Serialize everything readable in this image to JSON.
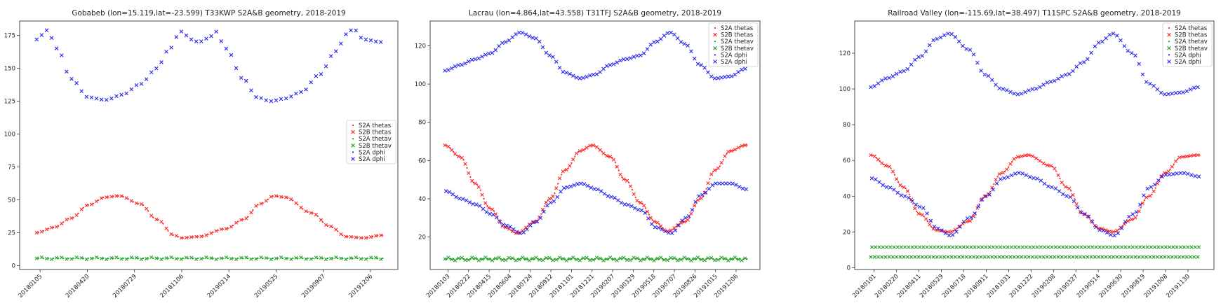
{
  "colors": {
    "red": "#ff2020",
    "green": "#1a9e1a",
    "blue": "#2222ee"
  },
  "chart_data": [
    {
      "type": "scatter",
      "title": "Gobabeb (lon=15.119,lat=-23.599) T33KWP S2A&B geometry, 2018-2019",
      "ylim": [
        -3,
        186
      ],
      "yticks": [
        0,
        25,
        50,
        75,
        100,
        125,
        150,
        175
      ],
      "xticklabels": [
        "20180105",
        "20180420",
        "20180729",
        "20181106",
        "20190214",
        "20190525",
        "20190907",
        "20191206"
      ],
      "legend": [
        "S2A thetas",
        "S2B thetas",
        "S2A thetav",
        "S2B thetav",
        "S2A dphi",
        "S2A dphi"
      ],
      "legend_loc": "center-right",
      "series_shapes": {
        "thetas": [
          [
            0,
            25
          ],
          [
            0.05,
            29
          ],
          [
            0.1,
            36
          ],
          [
            0.15,
            46
          ],
          [
            0.2,
            52
          ],
          [
            0.24,
            53
          ],
          [
            0.3,
            47
          ],
          [
            0.35,
            35
          ],
          [
            0.4,
            23
          ],
          [
            0.42,
            21
          ],
          [
            0.47,
            22
          ],
          [
            0.55,
            28
          ],
          [
            0.6,
            35
          ],
          [
            0.65,
            47
          ],
          [
            0.69,
            53
          ],
          [
            0.72,
            52
          ],
          [
            0.8,
            40
          ],
          [
            0.85,
            30
          ],
          [
            0.9,
            22
          ],
          [
            0.95,
            21
          ],
          [
            1.0,
            23
          ]
        ],
        "thetav": [
          [
            0,
            5.5
          ],
          [
            1,
            5.5
          ]
        ],
        "dphi": [
          [
            0,
            172
          ],
          [
            0.03,
            179
          ],
          [
            0.06,
            165
          ],
          [
            0.1,
            142
          ],
          [
            0.15,
            128
          ],
          [
            0.2,
            126
          ],
          [
            0.25,
            130
          ],
          [
            0.3,
            138
          ],
          [
            0.35,
            150
          ],
          [
            0.38,
            163
          ],
          [
            0.42,
            178
          ],
          [
            0.45,
            172
          ],
          [
            0.47,
            170
          ],
          [
            0.5,
            173
          ],
          [
            0.52,
            178
          ],
          [
            0.55,
            165
          ],
          [
            0.6,
            142
          ],
          [
            0.64,
            128
          ],
          [
            0.68,
            125
          ],
          [
            0.72,
            127
          ],
          [
            0.77,
            132
          ],
          [
            0.82,
            145
          ],
          [
            0.87,
            163
          ],
          [
            0.9,
            176
          ],
          [
            0.92,
            180
          ],
          [
            0.95,
            172
          ],
          [
            1.0,
            170
          ]
        ]
      },
      "points_per_series": 70
    },
    {
      "type": "scatter",
      "title": "Lacrau (lon=4.864,lat=43.558) T31TFJ S2A&B geometry, 2018-2019",
      "ylim": [
        3,
        133
      ],
      "yticks": [
        20,
        40,
        60,
        80,
        100,
        120
      ],
      "xticklabels": [
        "20180103",
        "20180222",
        "20180415",
        "20180604",
        "20180724",
        "20180912",
        "20181101",
        "20181221",
        "20190207",
        "20190329",
        "20190518",
        "20190707",
        "20190826",
        "20191015",
        "20191206"
      ],
      "legend": [
        "S2A thetas",
        "S2B thetas",
        "S2A thetav",
        "S2B thetav",
        "S2A dphi",
        "S2A dphi"
      ],
      "legend_loc": "top-right",
      "series_shapes": {
        "thetas": [
          [
            0,
            68
          ],
          [
            0.05,
            62
          ],
          [
            0.1,
            48
          ],
          [
            0.15,
            35
          ],
          [
            0.2,
            25
          ],
          [
            0.24,
            22
          ],
          [
            0.3,
            28
          ],
          [
            0.35,
            40
          ],
          [
            0.4,
            55
          ],
          [
            0.45,
            65
          ],
          [
            0.49,
            68
          ],
          [
            0.55,
            62
          ],
          [
            0.6,
            50
          ],
          [
            0.65,
            38
          ],
          [
            0.7,
            28
          ],
          [
            0.74,
            23
          ],
          [
            0.8,
            28
          ],
          [
            0.85,
            40
          ],
          [
            0.9,
            55
          ],
          [
            0.95,
            65
          ],
          [
            1.0,
            68
          ]
        ],
        "thetav": [
          [
            0,
            8.5
          ],
          [
            1,
            8.5
          ]
        ],
        "dphi_upper": [
          [
            0,
            107
          ],
          [
            0.05,
            110
          ],
          [
            0.1,
            113
          ],
          [
            0.15,
            116
          ],
          [
            0.2,
            122
          ],
          [
            0.25,
            127
          ],
          [
            0.3,
            124
          ],
          [
            0.35,
            115
          ],
          [
            0.4,
            106
          ],
          [
            0.45,
            103
          ],
          [
            0.5,
            105
          ],
          [
            0.55,
            110
          ],
          [
            0.6,
            113
          ],
          [
            0.65,
            115
          ],
          [
            0.7,
            122
          ],
          [
            0.75,
            127
          ],
          [
            0.8,
            121
          ],
          [
            0.85,
            110
          ],
          [
            0.9,
            103
          ],
          [
            0.95,
            104
          ],
          [
            1.0,
            108
          ]
        ],
        "dphi_lower": [
          [
            0,
            44
          ],
          [
            0.05,
            40
          ],
          [
            0.1,
            37
          ],
          [
            0.15,
            32
          ],
          [
            0.2,
            26
          ],
          [
            0.25,
            22
          ],
          [
            0.3,
            28
          ],
          [
            0.35,
            38
          ],
          [
            0.4,
            46
          ],
          [
            0.45,
            48
          ],
          [
            0.5,
            45
          ],
          [
            0.55,
            41
          ],
          [
            0.6,
            37
          ],
          [
            0.65,
            34
          ],
          [
            0.7,
            25
          ],
          [
            0.75,
            22
          ],
          [
            0.8,
            30
          ],
          [
            0.85,
            42
          ],
          [
            0.9,
            48
          ],
          [
            0.95,
            48
          ],
          [
            1.0,
            45
          ]
        ]
      },
      "points_per_series": 90
    },
    {
      "type": "scatter",
      "title": "Railroad Valley (lon=-115.69,lat=38.497) T11SPC S2A&B geometry, 2018-2019",
      "ylim": [
        -1,
        138
      ],
      "yticks": [
        0,
        20,
        40,
        60,
        80,
        100,
        120
      ],
      "xticklabels": [
        "20180101",
        "20180220",
        "20180411",
        "20180529",
        "20180718",
        "20180911",
        "20181031",
        "20181222",
        "20190208",
        "20190327",
        "20190514",
        "20190630",
        "20190819",
        "20191008",
        "20191130"
      ],
      "legend": [
        "S2A thetas",
        "S2B thetas",
        "S2A thetav",
        "S2B thetav",
        "S2A dphi",
        "S2A dphi"
      ],
      "legend_loc": "top-right",
      "series_shapes": {
        "thetas": [
          [
            0,
            63
          ],
          [
            0.05,
            57
          ],
          [
            0.1,
            45
          ],
          [
            0.15,
            30
          ],
          [
            0.2,
            21
          ],
          [
            0.24,
            20
          ],
          [
            0.3,
            26
          ],
          [
            0.35,
            40
          ],
          [
            0.4,
            53
          ],
          [
            0.45,
            62
          ],
          [
            0.48,
            63
          ],
          [
            0.55,
            57
          ],
          [
            0.6,
            45
          ],
          [
            0.65,
            30
          ],
          [
            0.7,
            22
          ],
          [
            0.74,
            20
          ],
          [
            0.8,
            27
          ],
          [
            0.85,
            40
          ],
          [
            0.9,
            53
          ],
          [
            0.95,
            62
          ],
          [
            1.0,
            63
          ]
        ],
        "thetav_a": [
          [
            0,
            6
          ],
          [
            1,
            6
          ]
        ],
        "thetav_b": [
          [
            0,
            11.5
          ],
          [
            1,
            11.5
          ]
        ],
        "dphi_upper": [
          [
            0,
            101
          ],
          [
            0.05,
            106
          ],
          [
            0.1,
            110
          ],
          [
            0.15,
            118
          ],
          [
            0.2,
            128
          ],
          [
            0.24,
            131
          ],
          [
            0.3,
            122
          ],
          [
            0.35,
            108
          ],
          [
            0.4,
            100
          ],
          [
            0.45,
            97
          ],
          [
            0.5,
            100
          ],
          [
            0.55,
            104
          ],
          [
            0.6,
            108
          ],
          [
            0.65,
            115
          ],
          [
            0.7,
            126
          ],
          [
            0.74,
            131
          ],
          [
            0.8,
            120
          ],
          [
            0.85,
            103
          ],
          [
            0.9,
            97
          ],
          [
            0.95,
            98
          ],
          [
            1.0,
            101
          ]
        ],
        "dphi_lower": [
          [
            0,
            50
          ],
          [
            0.05,
            45
          ],
          [
            0.1,
            40
          ],
          [
            0.15,
            34
          ],
          [
            0.2,
            22
          ],
          [
            0.24,
            18
          ],
          [
            0.3,
            28
          ],
          [
            0.35,
            40
          ],
          [
            0.4,
            50
          ],
          [
            0.45,
            53
          ],
          [
            0.5,
            50
          ],
          [
            0.55,
            45
          ],
          [
            0.6,
            40
          ],
          [
            0.65,
            30
          ],
          [
            0.7,
            21
          ],
          [
            0.74,
            18
          ],
          [
            0.8,
            30
          ],
          [
            0.85,
            45
          ],
          [
            0.9,
            52
          ],
          [
            0.95,
            53
          ],
          [
            1.0,
            51
          ]
        ]
      },
      "points_per_series": 90
    }
  ]
}
